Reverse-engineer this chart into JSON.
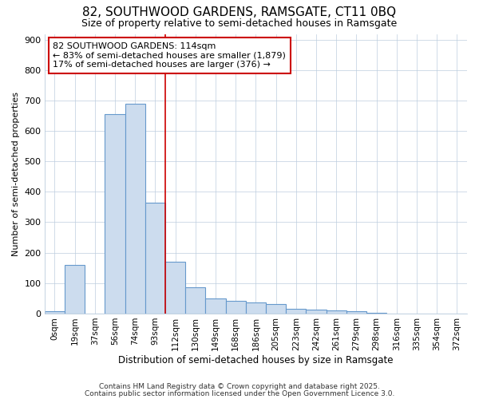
{
  "title1": "82, SOUTHWOOD GARDENS, RAMSGATE, CT11 0BQ",
  "title2": "Size of property relative to semi-detached houses in Ramsgate",
  "xlabel": "Distribution of semi-detached houses by size in Ramsgate",
  "ylabel": "Number of semi-detached properties",
  "categories": [
    "0sqm",
    "19sqm",
    "37sqm",
    "56sqm",
    "74sqm",
    "93sqm",
    "112sqm",
    "130sqm",
    "149sqm",
    "168sqm",
    "186sqm",
    "205sqm",
    "223sqm",
    "242sqm",
    "261sqm",
    "279sqm",
    "298sqm",
    "316sqm",
    "335sqm",
    "354sqm",
    "372sqm"
  ],
  "values": [
    8,
    160,
    0,
    655,
    690,
    365,
    170,
    85,
    50,
    40,
    35,
    30,
    15,
    12,
    10,
    8,
    2,
    0,
    0,
    0,
    0
  ],
  "bar_color": "#ccdcee",
  "bar_edge_color": "#6699cc",
  "red_line_x": 6.0,
  "subject_line_color": "#cc0000",
  "annotation_text": "82 SOUTHWOOD GARDENS: 114sqm\n← 83% of semi-detached houses are smaller (1,879)\n17% of semi-detached houses are larger (376) →",
  "annotation_box_color": "#ffffff",
  "annotation_box_edge": "#cc0000",
  "footer1": "Contains HM Land Registry data © Crown copyright and database right 2025.",
  "footer2": "Contains public sector information licensed under the Open Government Licence 3.0.",
  "background_color": "#ffffff",
  "grid_color": "#bbccdd",
  "ylim": [
    0,
    920
  ],
  "yticks": [
    0,
    100,
    200,
    300,
    400,
    500,
    600,
    700,
    800,
    900
  ]
}
